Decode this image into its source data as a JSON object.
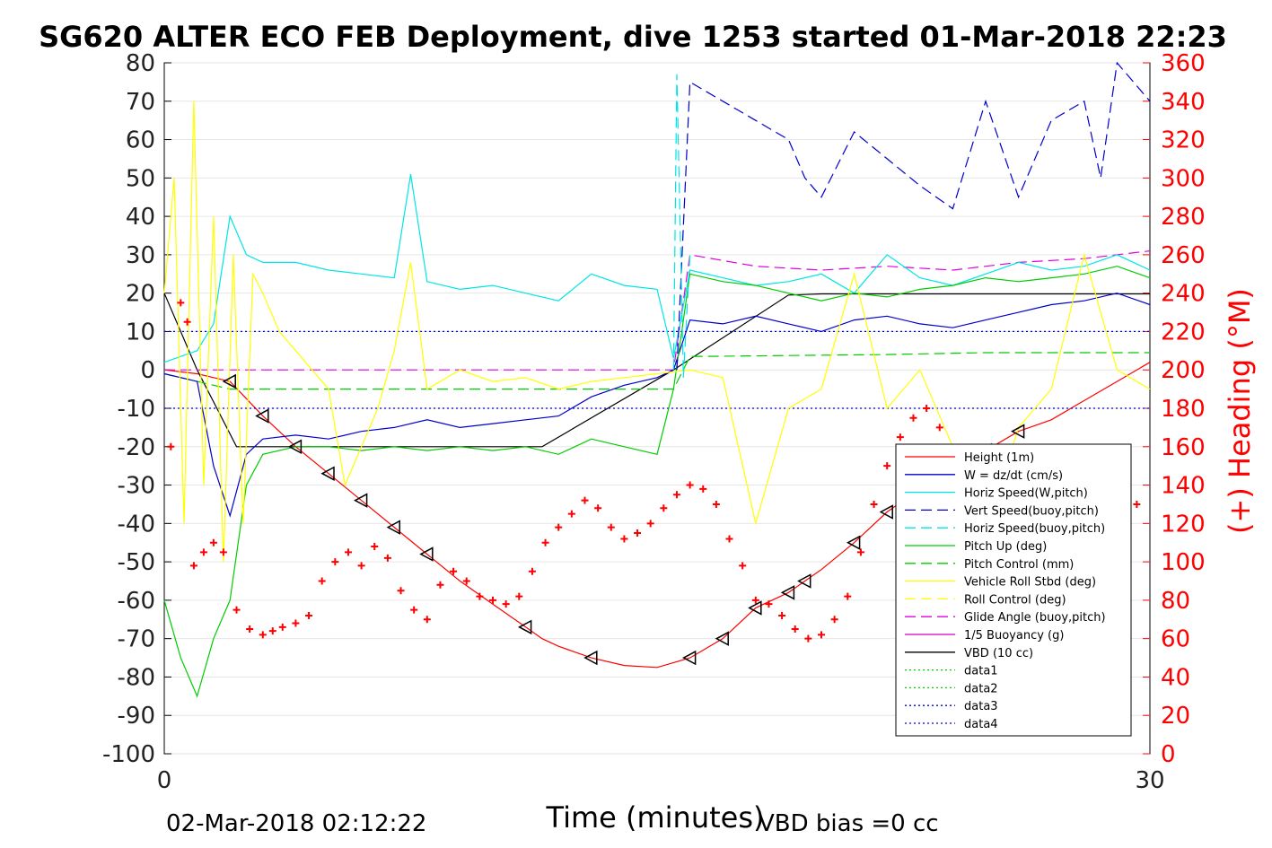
{
  "chart_data": {
    "type": "line",
    "title": "SG620 ALTER ECO FEB Deployment, dive 1253 started 01-Mar-2018 22:23",
    "xlabel": "Time (minutes)",
    "ylabel_right": "(+) Heading (°M)",
    "footer_left": "02-Mar-2018 02:12:22",
    "footer_right": "VBD bias =0 cc",
    "xlim": [
      0,
      30
    ],
    "ylim_left": [
      -100,
      80
    ],
    "ylim_right": [
      0,
      360
    ],
    "x_ticks": [
      "0",
      "30"
    ],
    "y_ticks_left": [
      "80",
      "70",
      "60",
      "50",
      "40",
      "30",
      "20",
      "10",
      "0",
      "-10",
      "-20",
      "-30",
      "-40",
      "-50",
      "-60",
      "-70",
      "-80",
      "-90",
      "-100"
    ],
    "y_ticks_right": [
      "360",
      "340",
      "320",
      "300",
      "280",
      "260",
      "240",
      "220",
      "200",
      "180",
      "160",
      "140",
      "120",
      "100",
      "80",
      "60",
      "40",
      "20",
      "0"
    ],
    "grid": true,
    "legend_position": "bottom-right",
    "colors": {
      "height": "#ff0000",
      "w": "#0000cc",
      "hspeed": "#00e5e5",
      "pitch": "#00cc00",
      "roll": "#ffff00",
      "glide": "#e000e0",
      "buoy": "#cc00cc",
      "vbd": "#000000",
      "heading": "#ff0000",
      "axis_right": "#ff0000"
    },
    "legend": [
      {
        "label": "Height (1m)",
        "color": "#ff0000",
        "dash": ""
      },
      {
        "label": "W = dz/dt (cm/s)",
        "color": "#0000cc",
        "dash": ""
      },
      {
        "label": "Horiz Speed(W,pitch)",
        "color": "#00e5e5",
        "dash": ""
      },
      {
        "label": "Vert Speed(buoy,pitch)",
        "color": "#0000cc",
        "dash": "12,6"
      },
      {
        "label": "Horiz Speed(buoy,pitch)",
        "color": "#00e5e5",
        "dash": "12,6"
      },
      {
        "label": "Pitch Up (deg)",
        "color": "#00cc00",
        "dash": ""
      },
      {
        "label": "Pitch Control (mm)",
        "color": "#00cc00",
        "dash": "12,6"
      },
      {
        "label": "Vehicle Roll Stbd (deg)",
        "color": "#ffff00",
        "dash": ""
      },
      {
        "label": "Roll Control (deg)",
        "color": "#ffff00",
        "dash": "12,6"
      },
      {
        "label": "Glide Angle (buoy,pitch)",
        "color": "#e000e0",
        "dash": "12,6"
      },
      {
        "label": "1/5 Buoyancy (g)",
        "color": "#cc00cc",
        "dash": ""
      },
      {
        "label": "VBD (10 cc)",
        "color": "#000000",
        "dash": ""
      },
      {
        "label": "data1",
        "color": "#00cc00",
        "dash": "2,3"
      },
      {
        "label": "data2",
        "color": "#00cc00",
        "dash": "2,3"
      },
      {
        "label": "data3",
        "color": "#0000cc",
        "dash": "2,3"
      },
      {
        "label": "data4",
        "color": "#0000cc",
        "dash": "2,3"
      }
    ],
    "series": [
      {
        "name": "Height (1m)",
        "color": "#ff0000",
        "dash": "",
        "axis": "left",
        "x": [
          0,
          1,
          2,
          3,
          4,
          5,
          6,
          7,
          8,
          9,
          10,
          11,
          11.5,
          12,
          13,
          14,
          15,
          16,
          17,
          18,
          19,
          19.5,
          20,
          21,
          22,
          23,
          24,
          25,
          26,
          27,
          28,
          29,
          30
        ],
        "y": [
          0,
          -1,
          -3,
          -12,
          -20,
          -27,
          -34,
          -41,
          -48,
          -55,
          -61,
          -67,
          -70,
          -72,
          -75,
          -77,
          -77.5,
          -75,
          -70,
          -62,
          -58,
          -55,
          -52,
          -45,
          -37,
          -31,
          -26,
          -21,
          -16,
          -13,
          -8,
          -3,
          2
        ]
      },
      {
        "name": "VBD (10 cc)",
        "color": "#000000",
        "dash": "",
        "axis": "left",
        "x": [
          0,
          1,
          1.6,
          2.2,
          3,
          11.5,
          15.5,
          19,
          20,
          26,
          30
        ],
        "y": [
          20,
          0,
          -10,
          -20,
          -20,
          -20,
          0,
          19.5,
          19.8,
          19.8,
          19.8
        ]
      },
      {
        "name": "Pitch Control (mm)",
        "color": "#00cc00",
        "dash": "12,6",
        "axis": "left",
        "x": [
          0,
          2,
          12,
          15.5,
          16,
          22,
          25,
          30
        ],
        "y": [
          -1,
          -5,
          -5,
          -5,
          3.5,
          4,
          4.5,
          4.5
        ]
      },
      {
        "name": "data3",
        "color": "#0000cc",
        "dash": "2,3",
        "axis": "left",
        "x": [
          0,
          30
        ],
        "y": [
          10,
          10
        ]
      },
      {
        "name": "data4",
        "color": "#0000cc",
        "dash": "2,3",
        "axis": "left",
        "x": [
          0,
          30
        ],
        "y": [
          -10,
          -10
        ]
      },
      {
        "name": "Glide Angle (buoy,pitch)",
        "color": "#e000e0",
        "dash": "12,6",
        "axis": "left",
        "x": [
          0,
          15.5,
          16,
          18,
          20,
          22,
          24,
          26,
          28,
          30
        ],
        "y": [
          0,
          0,
          30,
          27,
          26,
          27,
          26,
          28,
          29,
          31
        ]
      },
      {
        "name": "W = dz/dt (cm/s)",
        "color": "#0000cc",
        "dash": "",
        "axis": "left",
        "x": [
          0,
          1,
          1.5,
          2,
          2.5,
          3,
          4,
          5,
          6,
          7,
          8,
          9,
          10,
          11,
          12,
          13,
          14,
          15,
          15.5,
          16,
          17,
          18,
          19,
          20,
          21,
          22,
          23,
          24,
          25,
          26,
          27,
          28,
          29,
          30
        ],
        "y": [
          -1,
          -3,
          -25,
          -38,
          -22,
          -18,
          -17,
          -18,
          -16,
          -15,
          -13,
          -15,
          -14,
          -13,
          -12,
          -7,
          -4,
          -2,
          0,
          13,
          12,
          14,
          12,
          10,
          13,
          14,
          12,
          11,
          13,
          15,
          17,
          18,
          20,
          17
        ]
      },
      {
        "name": "Horiz Speed(W,pitch)",
        "color": "#00e5e5",
        "dash": "",
        "axis": "left",
        "x": [
          0,
          1,
          1.5,
          2,
          2.5,
          3,
          4,
          5,
          6,
          7,
          7.5,
          8,
          9,
          10,
          11,
          12,
          13,
          14,
          15,
          15.5,
          16,
          17,
          18,
          19,
          20,
          21,
          22,
          23,
          24,
          25,
          26,
          27,
          28,
          29,
          30
        ],
        "y": [
          2,
          5,
          12,
          40,
          30,
          28,
          28,
          26,
          25,
          24,
          51,
          23,
          21,
          22,
          20,
          18,
          25,
          22,
          21,
          3,
          26,
          24,
          22,
          23,
          25,
          20,
          30,
          24,
          22,
          25,
          28,
          26,
          27,
          30,
          26
        ]
      },
      {
        "name": "Pitch Up (deg)",
        "color": "#00cc00",
        "dash": "",
        "axis": "left",
        "x": [
          0,
          0.5,
          1,
          1.5,
          2,
          2.5,
          3,
          4,
          5,
          6,
          7,
          8,
          9,
          10,
          11,
          12,
          13,
          14,
          15,
          15.5,
          16,
          17,
          18,
          19,
          20,
          21,
          22,
          23,
          24,
          25,
          26,
          27,
          28,
          29,
          30
        ],
        "y": [
          -60,
          -75,
          -85,
          -70,
          -60,
          -30,
          -22,
          -20,
          -20,
          -21,
          -20,
          -21,
          -20,
          -21,
          -20,
          -22,
          -18,
          -20,
          -22,
          -5,
          25,
          23,
          22,
          20,
          18,
          20,
          19,
          21,
          22,
          24,
          23,
          24,
          25,
          27,
          24
        ]
      },
      {
        "name": "Vehicle Roll Stbd (deg)",
        "color": "#ffff00",
        "dash": "",
        "axis": "left",
        "x": [
          0,
          0.3,
          0.6,
          0.9,
          1.2,
          1.5,
          1.8,
          2.1,
          2.4,
          2.7,
          3,
          3.5,
          4,
          4.5,
          5,
          5.5,
          6,
          6.5,
          7,
          7.5,
          8,
          9,
          10,
          11,
          12,
          13,
          14,
          15,
          16,
          17,
          18,
          19,
          20,
          21,
          22,
          23,
          24,
          25,
          26,
          27,
          28,
          29,
          30
        ],
        "y": [
          20,
          50,
          -40,
          70,
          -30,
          40,
          -50,
          30,
          -40,
          25,
          20,
          10,
          5,
          0,
          -5,
          -30,
          -20,
          -10,
          5,
          28,
          -5,
          0,
          -3,
          -2,
          -5,
          -3,
          -2,
          -1,
          0,
          -2,
          -40,
          -10,
          -5,
          25,
          -10,
          0,
          -20,
          -42,
          -15,
          -5,
          30,
          0,
          -5
        ]
      },
      {
        "name": "Vert Speed(buoy,pitch)",
        "color": "#0000cc",
        "dash": "12,6",
        "axis": "left",
        "x": [
          15.6,
          16,
          17,
          18,
          19,
          19.5,
          20,
          21,
          22,
          23,
          24,
          25,
          26,
          27,
          28,
          28.5,
          29,
          30
        ],
        "y": [
          0,
          75,
          70,
          65,
          60,
          50,
          45,
          62,
          55,
          48,
          42,
          70,
          45,
          65,
          70,
          50,
          80,
          70
        ]
      },
      {
        "name": "Horiz Speed(buoy,pitch)",
        "color": "#00e5e5",
        "dash": "12,6",
        "axis": "left",
        "x": [
          15.5,
          15.6,
          15.8,
          16
        ],
        "y": [
          0,
          77,
          -2,
          30
        ]
      },
      {
        "name": "Heading (°M)",
        "color": "#ff0000",
        "dash": "",
        "axis": "right",
        "marker": "+",
        "x": [
          0.2,
          0.5,
          0.7,
          0.9,
          1.2,
          1.5,
          1.8,
          2.2,
          2.6,
          3,
          3.3,
          3.6,
          4,
          4.4,
          4.8,
          5.2,
          5.6,
          6,
          6.4,
          6.8,
          7.2,
          7.6,
          8,
          8.4,
          8.8,
          9.2,
          9.6,
          10,
          10.4,
          10.8,
          11.2,
          11.6,
          12,
          12.4,
          12.8,
          13.2,
          13.6,
          14,
          14.4,
          14.8,
          15.2,
          15.6,
          16,
          16.4,
          16.8,
          17.2,
          17.6,
          18,
          18.4,
          18.8,
          19.2,
          19.6,
          20,
          20.4,
          20.8,
          21.2,
          21.6,
          22,
          22.4,
          22.8,
          23.2,
          23.6,
          24,
          24.4,
          24.8,
          25.2,
          25.6,
          26,
          26.4,
          26.8,
          27.2,
          27.6,
          28,
          28.4,
          28.8,
          29.2,
          29.6
        ],
        "y": [
          160,
          235,
          225,
          98,
          105,
          110,
          105,
          75,
          65,
          62,
          64,
          66,
          68,
          72,
          90,
          100,
          105,
          98,
          108,
          102,
          85,
          75,
          70,
          88,
          95,
          90,
          82,
          80,
          78,
          82,
          95,
          110,
          118,
          125,
          132,
          128,
          118,
          112,
          115,
          120,
          128,
          135,
          140,
          138,
          130,
          112,
          98,
          80,
          78,
          72,
          65,
          60,
          62,
          70,
          82,
          105,
          130,
          150,
          165,
          175,
          180,
          170,
          155,
          125,
          100,
          85,
          80,
          72,
          70,
          60,
          65,
          85,
          112,
          118,
          122,
          125,
          130
        ]
      }
    ]
  }
}
